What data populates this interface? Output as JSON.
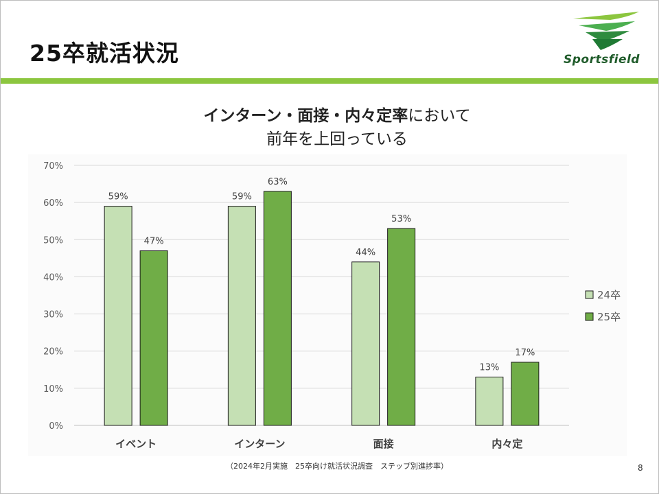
{
  "slide": {
    "title": "25卒就活状況",
    "logo_text": "Sportsfield",
    "headline_bold": "インターン・面接・内々定率",
    "headline_rest": "において",
    "headline_line2": "前年を上回っている",
    "footnote": "（2024年2月実施　25卒向け就活状況調査　ステップ別進捗率）",
    "page_number": "8"
  },
  "colors": {
    "accent_band": "#8cc63f",
    "series_24": "#c5e0b4",
    "series_25": "#70ad47"
  },
  "chart_data": {
    "type": "bar",
    "categories": [
      "イベント",
      "インターン",
      "面接",
      "内々定"
    ],
    "series": [
      {
        "name": "24卒",
        "values": [
          59,
          59,
          44,
          13
        ]
      },
      {
        "name": "25卒",
        "values": [
          47,
          63,
          53,
          17
        ]
      }
    ],
    "data_labels": [
      [
        "59%",
        "59%",
        "44%",
        "13%"
      ],
      [
        "47%",
        "63%",
        "53%",
        "17%"
      ]
    ],
    "y_ticks": [
      "0%",
      "10%",
      "20%",
      "30%",
      "40%",
      "50%",
      "60%",
      "70%"
    ],
    "ylim": [
      0,
      70
    ],
    "grid": true,
    "legend_position": "right"
  }
}
